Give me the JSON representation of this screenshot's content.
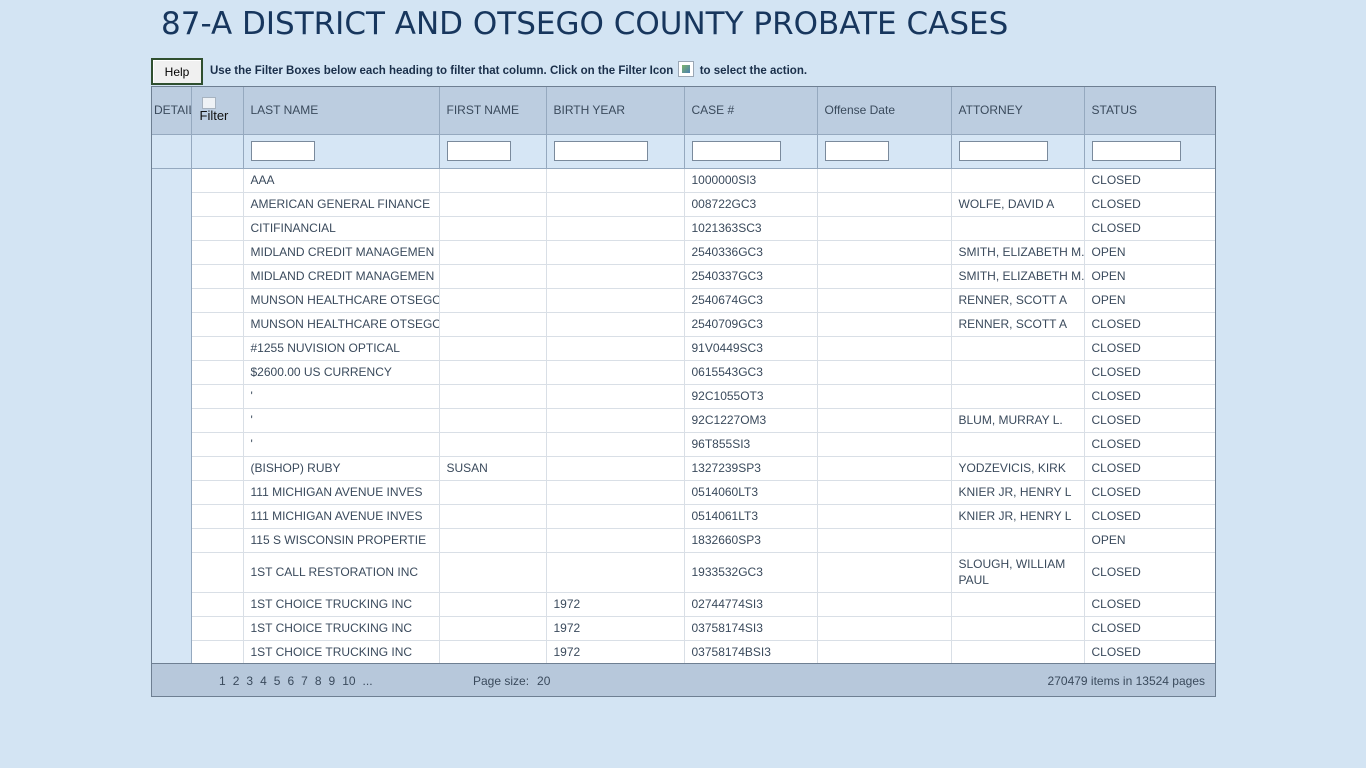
{
  "title": "87-A DISTRICT AND OTSEGO COUNTY PROBATE CASES",
  "help_label": "Help",
  "instructions": {
    "before": "Use the Filter Boxes below each heading to filter that column.  Click on the Filter Icon",
    "after": "to select the action."
  },
  "columns": {
    "detail": "DETAIL",
    "filter": "Filter",
    "last_name": "LAST NAME",
    "first_name": "FIRST NAME",
    "birth_year": "BIRTH YEAR",
    "case": "CASE #",
    "offense_date": "Offense Date",
    "attorney": "ATTORNEY",
    "status": "STATUS"
  },
  "filters": {
    "last_name": "",
    "first_name": "",
    "birth_year": "",
    "case": "",
    "offense_date": "",
    "attorney": "",
    "status": ""
  },
  "rows": [
    {
      "last": "AAA",
      "first": "",
      "year": "",
      "case": "1000000SI3",
      "offense": "",
      "attorney": "",
      "status": "CLOSED"
    },
    {
      "last": "AMERICAN GENERAL FINANCE",
      "first": "",
      "year": "",
      "case": "008722GC3",
      "offense": "",
      "attorney": "WOLFE, DAVID A",
      "status": "CLOSED"
    },
    {
      "last": "CITIFINANCIAL",
      "first": "",
      "year": "",
      "case": "1021363SC3",
      "offense": "",
      "attorney": "",
      "status": "CLOSED"
    },
    {
      "last": "MIDLAND CREDIT MANAGEMEN",
      "first": "",
      "year": "",
      "case": "2540336GC3",
      "offense": "",
      "attorney": "SMITH, ELIZABETH M.",
      "status": "OPEN"
    },
    {
      "last": "MIDLAND CREDIT MANAGEMEN",
      "first": "",
      "year": "",
      "case": "2540337GC3",
      "offense": "",
      "attorney": "SMITH, ELIZABETH M.",
      "status": "OPEN"
    },
    {
      "last": "MUNSON HEALTHCARE OTSEGO",
      "first": "",
      "year": "",
      "case": "2540674GC3",
      "offense": "",
      "attorney": "RENNER, SCOTT A",
      "status": "OPEN"
    },
    {
      "last": "MUNSON HEALTHCARE OTSEGO",
      "first": "",
      "year": "",
      "case": "2540709GC3",
      "offense": "",
      "attorney": "RENNER, SCOTT A",
      "status": "CLOSED"
    },
    {
      "last": "#1255 NUVISION OPTICAL",
      "first": "",
      "year": "",
      "case": "91V0449SC3",
      "offense": "",
      "attorney": "",
      "status": "CLOSED"
    },
    {
      "last": "$2600.00 US CURRENCY",
      "first": "",
      "year": "",
      "case": "0615543GC3",
      "offense": "",
      "attorney": "",
      "status": "CLOSED"
    },
    {
      "last": "'",
      "first": "",
      "year": "",
      "case": "92C1055OT3",
      "offense": "",
      "attorney": "",
      "status": "CLOSED"
    },
    {
      "last": "'",
      "first": "",
      "year": "",
      "case": "92C1227OM3",
      "offense": "",
      "attorney": "BLUM, MURRAY L.",
      "status": "CLOSED"
    },
    {
      "last": "'",
      "first": "",
      "year": "",
      "case": "96T855SI3",
      "offense": "",
      "attorney": "",
      "status": "CLOSED"
    },
    {
      "last": "(BISHOP) RUBY",
      "first": "SUSAN",
      "year": "",
      "case": "1327239SP3",
      "offense": "",
      "attorney": "YODZEVICIS, KIRK",
      "status": "CLOSED"
    },
    {
      "last": "111 MICHIGAN AVENUE INVES",
      "first": "",
      "year": "",
      "case": "0514060LT3",
      "offense": "",
      "attorney": "KNIER JR, HENRY L",
      "status": "CLOSED"
    },
    {
      "last": "111 MICHIGAN AVENUE INVES",
      "first": "",
      "year": "",
      "case": "0514061LT3",
      "offense": "",
      "attorney": "KNIER JR, HENRY L",
      "status": "CLOSED"
    },
    {
      "last": "115 S WISCONSIN PROPERTIE",
      "first": "",
      "year": "",
      "case": "1832660SP3",
      "offense": "",
      "attorney": "",
      "status": "OPEN"
    },
    {
      "last": "1ST CALL RESTORATION INC",
      "first": "",
      "year": "",
      "case": "1933532GC3",
      "offense": "",
      "attorney": "SLOUGH, WILLIAM PAUL",
      "status": "CLOSED"
    },
    {
      "last": "1ST CHOICE TRUCKING INC",
      "first": "",
      "year": "1972",
      "case": "02744774SI3",
      "offense": "",
      "attorney": "",
      "status": "CLOSED"
    },
    {
      "last": "1ST CHOICE TRUCKING INC",
      "first": "",
      "year": "1972",
      "case": "03758174SI3",
      "offense": "",
      "attorney": "",
      "status": "CLOSED"
    },
    {
      "last": "1ST CHOICE TRUCKING INC",
      "first": "",
      "year": "1972",
      "case": "03758174BSI3",
      "offense": "",
      "attorney": "",
      "status": "CLOSED"
    }
  ],
  "pager": {
    "pages": [
      "1",
      "2",
      "3",
      "4",
      "5",
      "6",
      "7",
      "8",
      "9",
      "10",
      "..."
    ],
    "page_size_label": "Page size:",
    "page_size": "20",
    "summary": "270479 items in 13524 pages"
  }
}
